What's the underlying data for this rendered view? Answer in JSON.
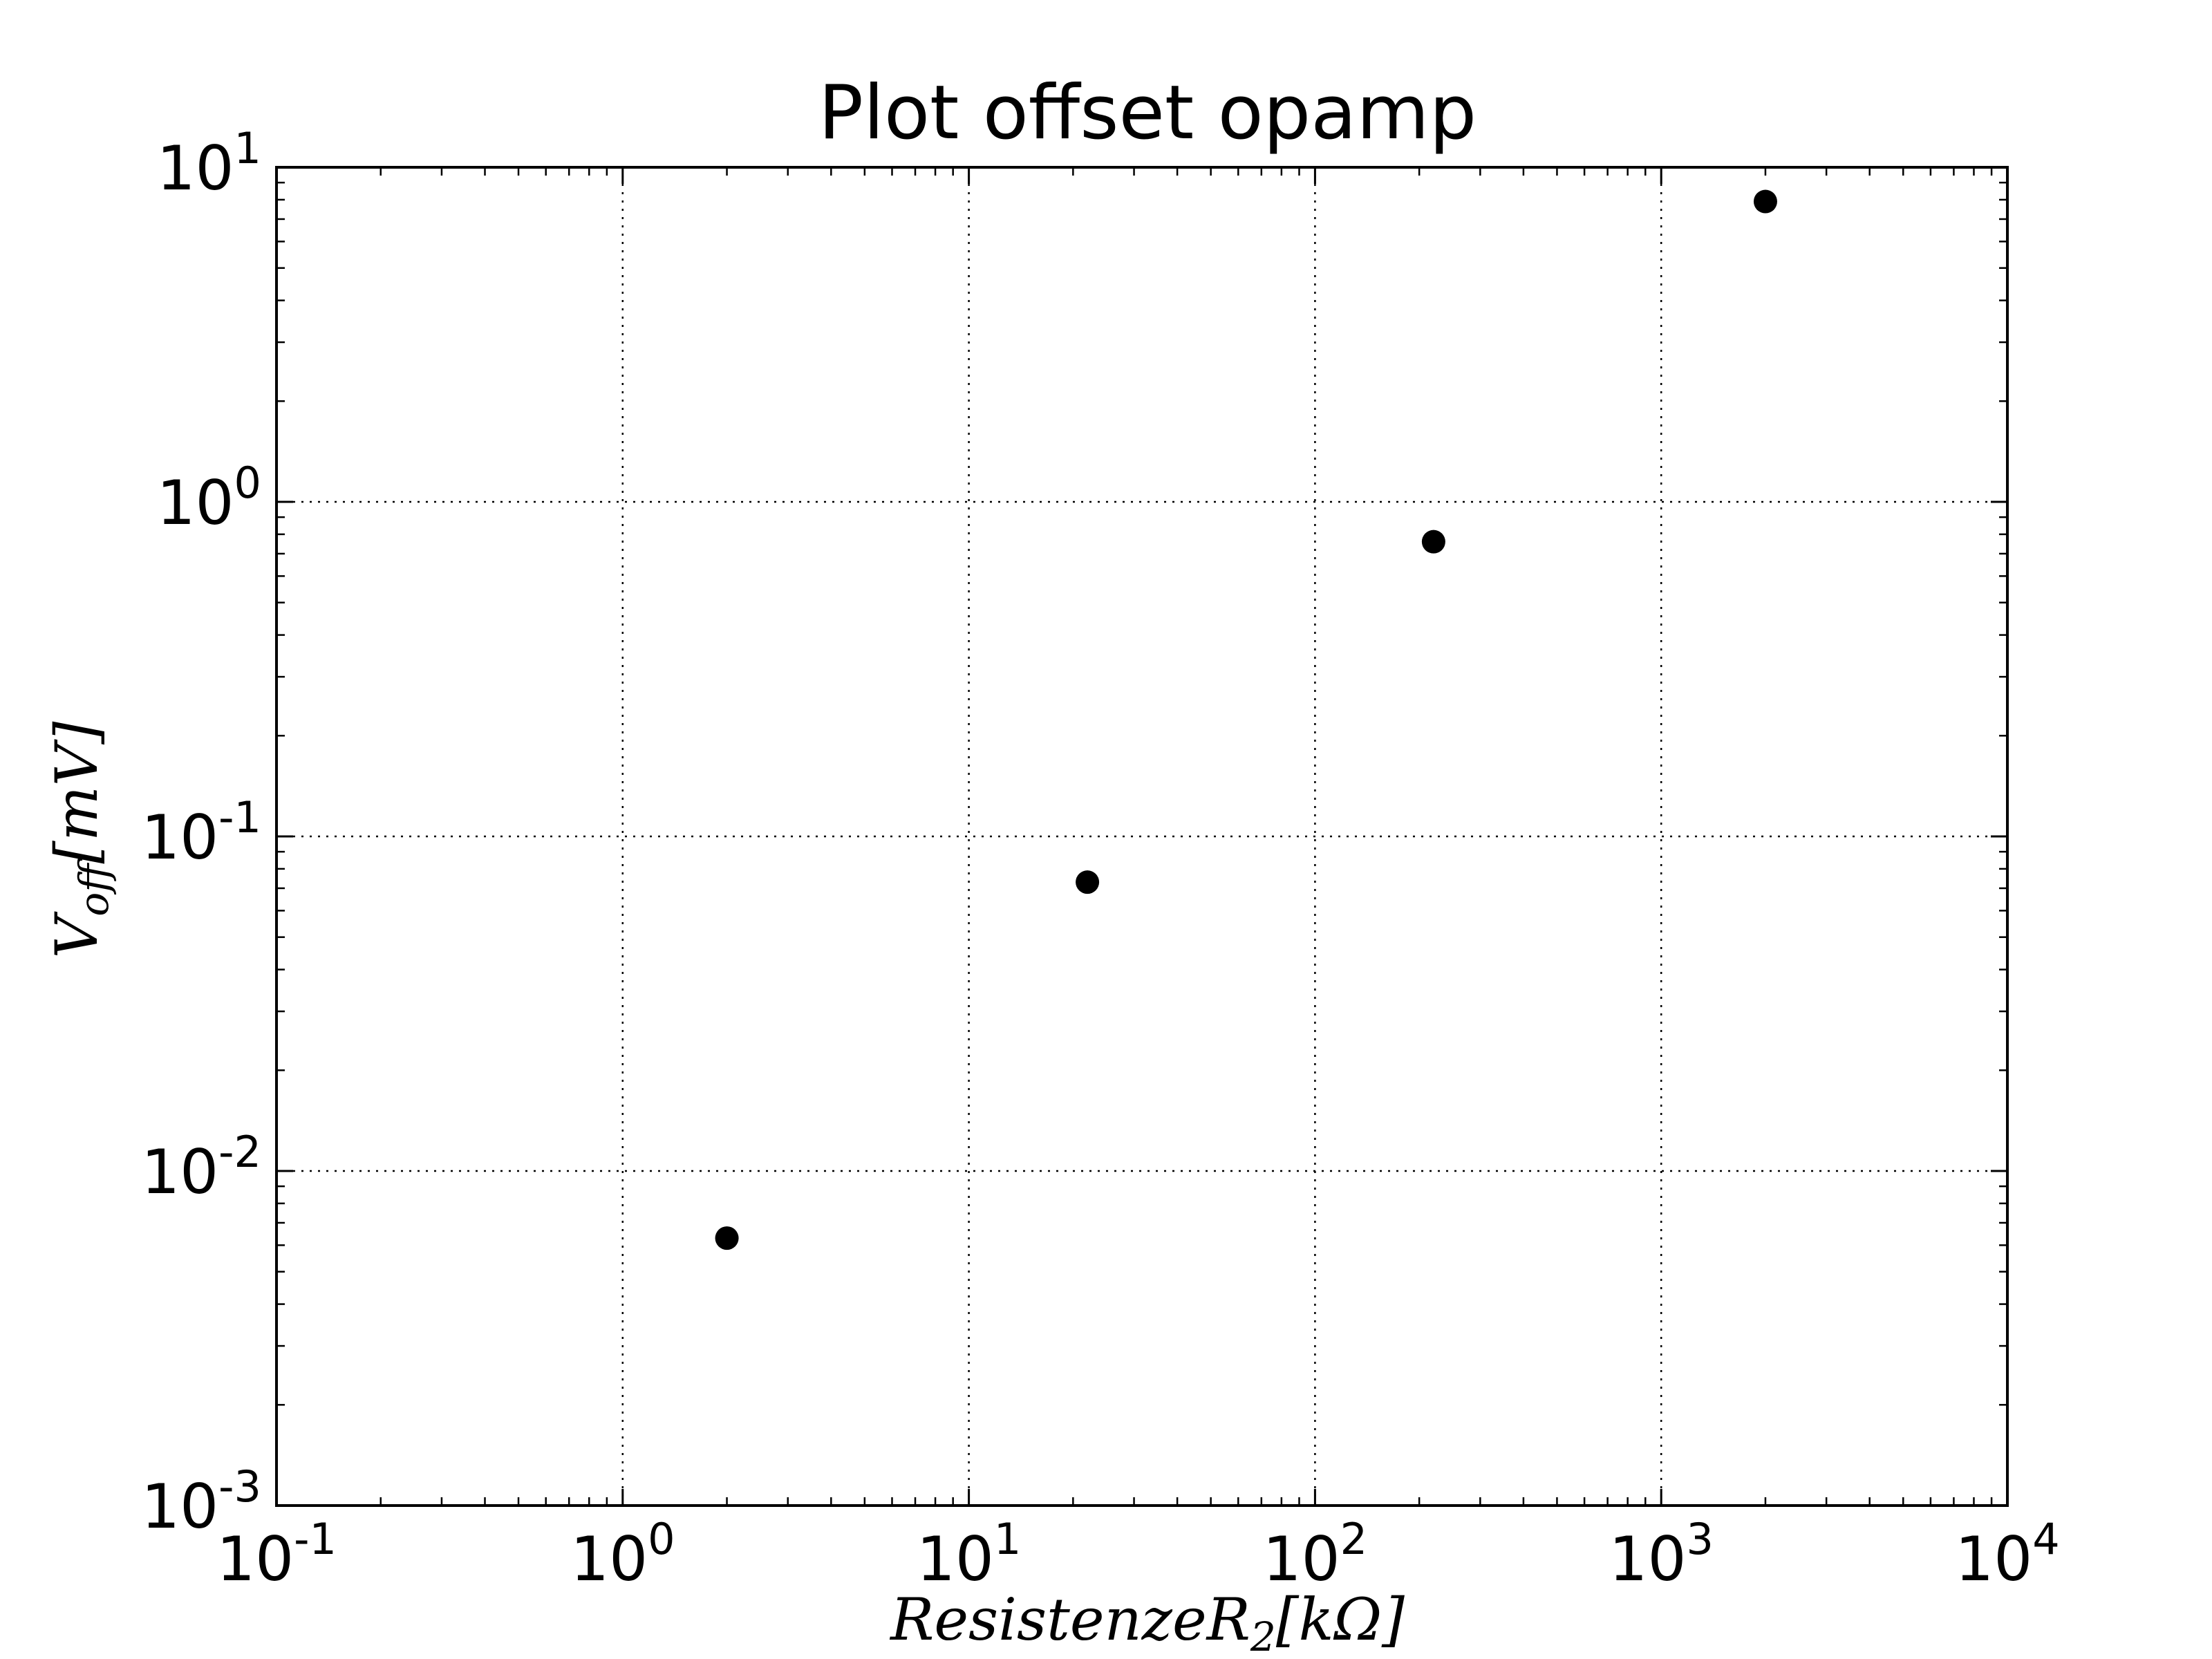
{
  "chart_data": {
    "type": "scatter",
    "title": "Plot offset opamp",
    "xlabel": {
      "base": "Resistenze",
      "var": "R",
      "sub": "2",
      "unit": "[kΩ]"
    },
    "ylabel": {
      "var": "V",
      "sub": "off",
      "unit": "[mV]"
    },
    "xscale": "log",
    "yscale": "log",
    "xlim": [
      0.1,
      10000
    ],
    "ylim": [
      0.001,
      10
    ],
    "grid": true,
    "legend": "none",
    "x_ticks": [
      {
        "base": "10",
        "exp": "-1"
      },
      {
        "base": "10",
        "exp": "0"
      },
      {
        "base": "10",
        "exp": "1"
      },
      {
        "base": "10",
        "exp": "2"
      },
      {
        "base": "10",
        "exp": "3"
      },
      {
        "base": "10",
        "exp": "4"
      }
    ],
    "y_ticks": [
      {
        "base": "10",
        "exp": "-3"
      },
      {
        "base": "10",
        "exp": "-2"
      },
      {
        "base": "10",
        "exp": "-1"
      },
      {
        "base": "10",
        "exp": "0"
      },
      {
        "base": "10",
        "exp": "1"
      }
    ],
    "series": [
      {
        "marker_color": "#000000",
        "points": [
          {
            "x": 2,
            "y": 0.0063
          },
          {
            "x": 22,
            "y": 0.073
          },
          {
            "x": 220,
            "y": 0.76
          },
          {
            "x": 2000,
            "y": 7.9
          }
        ]
      }
    ]
  }
}
